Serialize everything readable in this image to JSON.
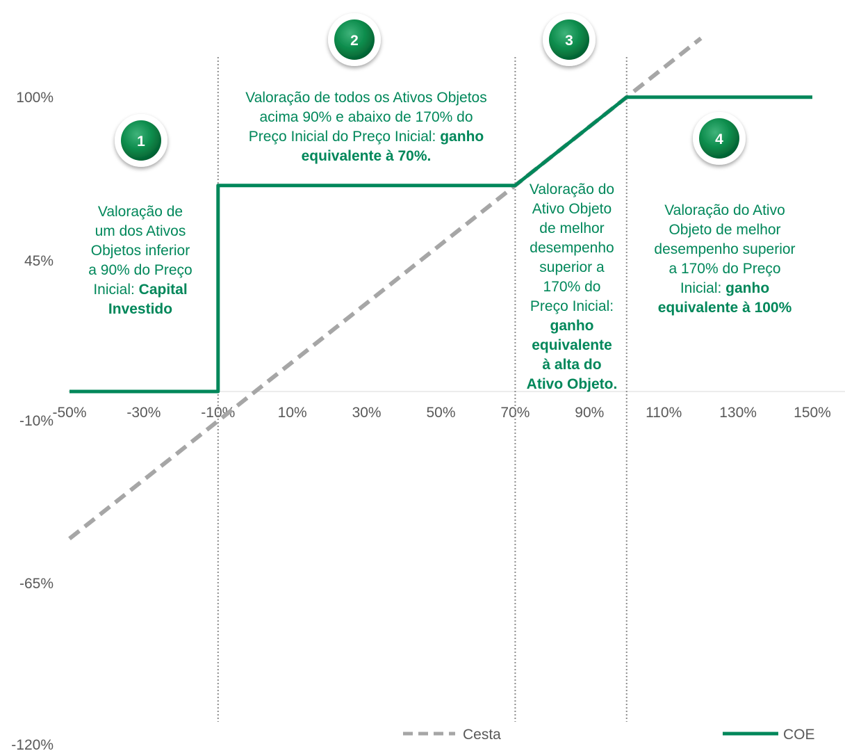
{
  "chart_data": {
    "type": "line",
    "x_ticks": [
      "-50%",
      "-30%",
      "-10%",
      "10%",
      "30%",
      "50%",
      "70%",
      "90%",
      "110%",
      "130%",
      "150%"
    ],
    "y_ticks": [
      "100%",
      "45%",
      "-10%",
      "-65%",
      "-120%"
    ],
    "xlim": [
      -50,
      150
    ],
    "ylim": [
      -120,
      100
    ],
    "grid": false,
    "legend_position": "bottom",
    "series": [
      {
        "name": "Cesta",
        "style": "dashed",
        "color": "#a6a6a6",
        "x": [
          -50,
          120
        ],
        "y": [
          -50,
          120
        ]
      },
      {
        "name": "COE",
        "style": "solid",
        "color": "#00875a",
        "x": [
          -50,
          -10,
          -10,
          70,
          100,
          150
        ],
        "y": [
          0,
          0,
          70,
          70,
          100,
          100
        ]
      }
    ],
    "vlines": [
      -10,
      70,
      100
    ],
    "annotations": [
      {
        "badge": "1",
        "lines": [
          [
            {
              "t": "Valoração de",
              "b": false
            }
          ],
          [
            {
              "t": "um dos Ativos",
              "b": false
            }
          ],
          [
            {
              "t": "Objetos inferior",
              "b": false
            }
          ],
          [
            {
              "t": "a 90% do Preço",
              "b": false
            }
          ],
          [
            {
              "t": "Inicial: ",
              "b": false
            },
            {
              "t": "Capital",
              "b": true
            }
          ],
          [
            {
              "t": "Investido",
              "b": true
            }
          ]
        ]
      },
      {
        "badge": "2",
        "lines": [
          [
            {
              "t": "Valoração de todos os Ativos Objetos",
              "b": false
            }
          ],
          [
            {
              "t": "acima 90% e abaixo de 170% do",
              "b": false
            }
          ],
          [
            {
              "t": "Preço Inicial do Preço Inicial: ",
              "b": false
            },
            {
              "t": "ganho",
              "b": true
            }
          ],
          [
            {
              "t": "equivalente à 70%.",
              "b": true
            }
          ]
        ]
      },
      {
        "badge": "3",
        "lines": [
          [
            {
              "t": "Valoração do",
              "b": false
            }
          ],
          [
            {
              "t": "Ativo Objeto",
              "b": false
            }
          ],
          [
            {
              "t": "de melhor",
              "b": false
            }
          ],
          [
            {
              "t": "desempenho",
              "b": false
            }
          ],
          [
            {
              "t": "superior a",
              "b": false
            }
          ],
          [
            {
              "t": "170% do",
              "b": false
            }
          ],
          [
            {
              "t": "Preço Inicial:",
              "b": false
            }
          ],
          [
            {
              "t": "ganho",
              "b": true
            }
          ],
          [
            {
              "t": "equivalente",
              "b": true
            }
          ],
          [
            {
              "t": "à alta do",
              "b": true
            }
          ],
          [
            {
              "t": "Ativo Objeto.",
              "b": true
            }
          ]
        ]
      },
      {
        "badge": "4",
        "lines": [
          [
            {
              "t": "Valoração do Ativo",
              "b": false
            }
          ],
          [
            {
              "t": "Objeto de melhor",
              "b": false
            }
          ],
          [
            {
              "t": "desempenho superior",
              "b": false
            }
          ],
          [
            {
              "t": "a 170% do Preço",
              "b": false
            }
          ],
          [
            {
              "t": "Inicial: ",
              "b": false
            },
            {
              "t": "ganho",
              "b": true
            }
          ],
          [
            {
              "t": "equivalente à 100%",
              "b": true
            }
          ]
        ]
      }
    ]
  }
}
